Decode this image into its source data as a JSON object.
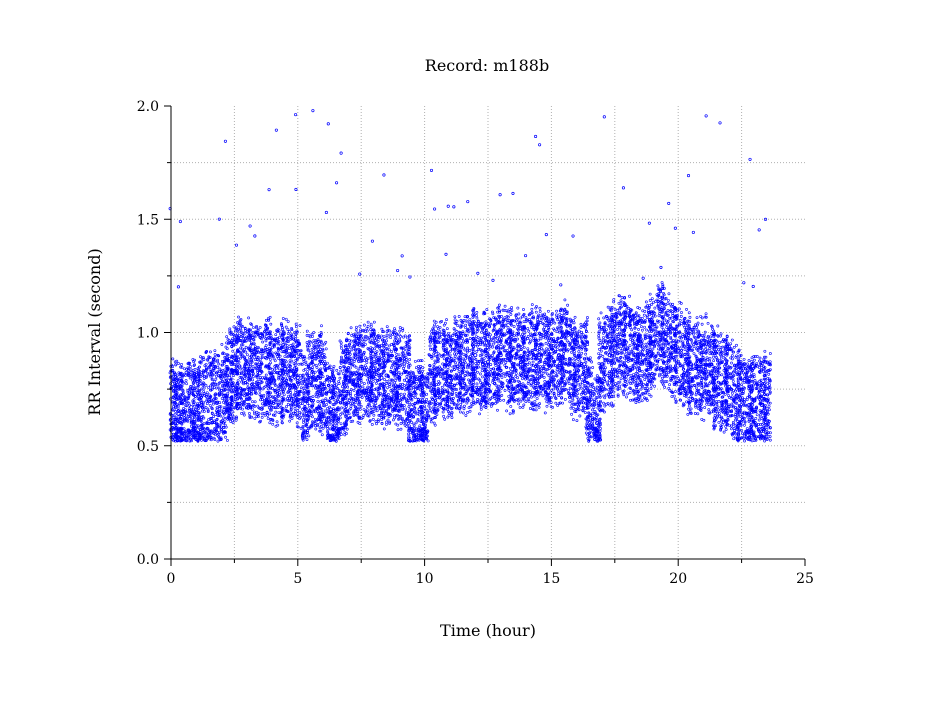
{
  "chart_data": {
    "type": "scatter",
    "title": "Record:  m188b",
    "xlabel": "Time (hour)",
    "ylabel": "RR Interval (second)",
    "xlim": [
      0,
      25
    ],
    "ylim": [
      0.0,
      2.0
    ],
    "x_ticks": [
      0,
      5,
      10,
      15,
      20,
      25
    ],
    "x_tick_labels": [
      "0",
      "5",
      "10",
      "15",
      "20",
      "25"
    ],
    "y_ticks": [
      0.0,
      0.5,
      1.0,
      1.5,
      2.0
    ],
    "y_tick_labels": [
      "0.0",
      "0.5",
      "1.0",
      "1.5",
      "2.0"
    ],
    "grid": true,
    "legend": "none",
    "marker_color": "#0000ff",
    "series": [
      {
        "x": [
          0.1,
          0.3,
          0.5,
          0.8,
          1.0,
          1.2,
          1.5,
          1.8,
          2.1,
          2.3,
          2.5,
          2.7,
          3.0,
          3.2,
          3.5,
          3.8,
          4.0,
          4.3,
          4.5,
          4.8,
          5.0,
          5.3,
          5.5,
          5.8,
          6.0,
          6.3,
          6.5,
          6.8,
          7.0,
          7.3,
          7.5,
          7.8,
          8.0,
          8.3,
          8.5,
          8.8,
          9.0,
          9.3,
          9.5,
          9.8,
          10.0,
          10.3,
          10.5,
          10.8,
          11.0,
          11.3,
          11.5,
          11.8,
          12.0,
          12.3,
          12.5,
          12.8,
          13.0,
          13.3,
          13.5,
          13.8,
          14.0,
          14.3,
          14.5,
          14.8,
          15.0,
          15.3,
          15.5,
          15.8,
          16.0,
          16.3,
          16.5,
          16.8,
          17.0,
          17.3,
          17.5,
          17.8,
          18.0,
          18.3,
          18.5,
          18.8,
          19.0,
          19.3,
          19.5,
          19.8,
          20.0,
          20.3,
          20.5,
          20.8,
          21.0,
          21.3,
          21.5,
          21.8,
          22.0,
          22.3,
          22.5,
          22.8,
          23.0,
          23.3,
          23.5
        ],
        "y": [
          0.66,
          0.64,
          0.65,
          0.67,
          0.66,
          0.68,
          0.7,
          0.69,
          0.72,
          0.8,
          0.82,
          0.85,
          0.84,
          0.83,
          0.82,
          0.85,
          0.8,
          0.82,
          0.84,
          0.83,
          0.8,
          0.7,
          0.78,
          0.8,
          0.75,
          0.66,
          0.62,
          0.74,
          0.8,
          0.82,
          0.81,
          0.82,
          0.83,
          0.8,
          0.81,
          0.82,
          0.8,
          0.79,
          0.65,
          0.66,
          0.63,
          0.82,
          0.84,
          0.85,
          0.8,
          0.85,
          0.86,
          0.88,
          0.9,
          0.86,
          0.87,
          0.88,
          0.9,
          0.89,
          0.86,
          0.87,
          0.88,
          0.89,
          0.9,
          0.88,
          0.89,
          0.9,
          0.92,
          0.86,
          0.82,
          0.86,
          0.7,
          0.6,
          0.86,
          0.9,
          0.92,
          0.95,
          0.93,
          0.9,
          0.89,
          0.92,
          0.95,
          1.0,
          0.98,
          0.94,
          0.92,
          0.88,
          0.86,
          0.84,
          0.85,
          0.82,
          0.8,
          0.78,
          0.76,
          0.72,
          0.7,
          0.68,
          0.7,
          0.68,
          0.7
        ]
      }
    ]
  }
}
